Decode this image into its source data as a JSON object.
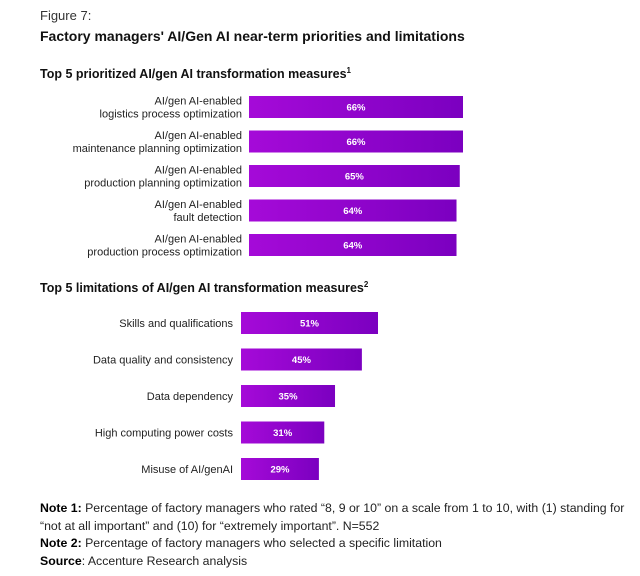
{
  "figure_label": "Figure 7:",
  "title": "Factory managers' AI/Gen AI near-term priorities and limitations",
  "chart_data": [
    {
      "type": "bar",
      "orientation": "horizontal",
      "title": "Top 5 prioritized AI/gen AI transformation measures",
      "title_sup": "1",
      "categories": [
        [
          "AI/gen AI-enabled",
          "logistics process optimization"
        ],
        [
          "AI/gen AI-enabled",
          "maintenance planning optimization"
        ],
        [
          "AI/gen AI-enabled",
          "production planning optimization"
        ],
        [
          "AI/gen AI-enabled",
          "fault detection"
        ],
        [
          "AI/gen AI-enabled",
          "production process optimization"
        ]
      ],
      "values": [
        66,
        66,
        65,
        64,
        64
      ],
      "value_labels": [
        "66%",
        "66%",
        "65%",
        "64%",
        "64%"
      ],
      "unit": "%",
      "grid": false,
      "legend": "none"
    },
    {
      "type": "bar",
      "orientation": "horizontal",
      "title": "Top 5 limitations of AI/gen AI transformation measures",
      "title_sup": "2",
      "categories": [
        [
          "Skills and qualifications"
        ],
        [
          "Data quality and consistency"
        ],
        [
          "Data dependency"
        ],
        [
          "High computing power costs"
        ],
        [
          "Misuse of AI/genAI"
        ]
      ],
      "values": [
        51,
        45,
        35,
        31,
        29
      ],
      "value_labels": [
        "51%",
        "45%",
        "35%",
        "31%",
        "29%"
      ],
      "unit": "%",
      "grid": false,
      "legend": "none"
    }
  ],
  "colors": {
    "bar_start": "#a50ad8",
    "bar_end": "#7b00c0",
    "label_text": "#ffffff"
  },
  "notes": {
    "note1_label": "Note 1:",
    "note1_text": " Percentage of factory managers who rated “8, 9 or 10” on a scale from 1 to 10, with (1) standing for “not at all important” and (10) for “extremely important”. N=552",
    "note2_label": "Note 2:",
    "note2_text": " Percentage of factory managers who selected a specific limitation",
    "source_label": "Source",
    "source_text": ": Accenture Research analysis"
  }
}
